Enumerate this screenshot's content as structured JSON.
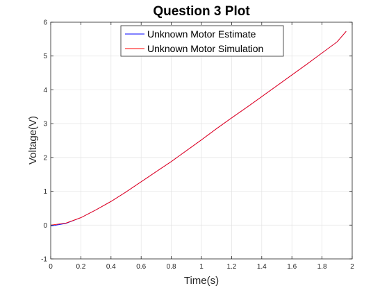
{
  "chart_data": {
    "type": "line",
    "title": "Question 3 Plot",
    "xlabel": "Time(s)",
    "ylabel": "Voltage(V)",
    "xlim": [
      0,
      2
    ],
    "ylim": [
      -1,
      6
    ],
    "xticks": [
      "0",
      "0.2",
      "0.4",
      "0.6",
      "0.8",
      "1",
      "1.2",
      "1.4",
      "1.6",
      "1.8",
      "2"
    ],
    "yticks": [
      "-1",
      "0",
      "1",
      "2",
      "3",
      "4",
      "5",
      "6"
    ],
    "grid": true,
    "legend_position": "top-center",
    "series": [
      {
        "name": "Unknown Motor Estimate",
        "color": "#0000ff",
        "x": [
          0,
          0.1,
          0.2,
          0.3,
          0.4,
          0.5,
          0.6,
          0.7,
          0.8,
          0.9,
          1.0,
          1.1,
          1.2,
          1.3,
          1.4,
          1.5,
          1.6,
          1.7,
          1.8,
          1.9,
          1.96
        ],
        "y": [
          -0.03,
          0.05,
          0.22,
          0.45,
          0.7,
          0.98,
          1.28,
          1.58,
          1.88,
          2.2,
          2.52,
          2.85,
          3.17,
          3.48,
          3.8,
          4.12,
          4.44,
          4.76,
          5.09,
          5.42,
          5.73
        ]
      },
      {
        "name": "Unknown Motor Simulation",
        "color": "#ff0000",
        "x": [
          0,
          0.1,
          0.2,
          0.3,
          0.4,
          0.5,
          0.6,
          0.7,
          0.8,
          0.9,
          1.0,
          1.1,
          1.2,
          1.3,
          1.4,
          1.5,
          1.6,
          1.7,
          1.8,
          1.9,
          1.96
        ],
        "y": [
          0,
          0.06,
          0.22,
          0.45,
          0.7,
          0.98,
          1.28,
          1.58,
          1.88,
          2.2,
          2.52,
          2.85,
          3.17,
          3.48,
          3.8,
          4.12,
          4.44,
          4.76,
          5.09,
          5.42,
          5.73
        ]
      }
    ]
  }
}
